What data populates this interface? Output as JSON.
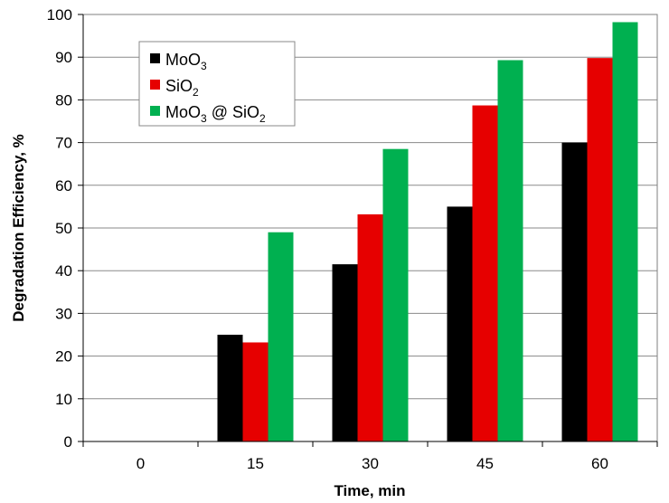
{
  "chart_data": {
    "type": "bar",
    "title": "",
    "xlabel": "Time, min",
    "ylabel": "Degradation Efficiency, %",
    "categories": [
      "0",
      "15",
      "30",
      "45",
      "60"
    ],
    "ylim": [
      0,
      100
    ],
    "ytick_step": 10,
    "grid": true,
    "legend_position": "top-left",
    "series": [
      {
        "name": "MoO3",
        "label_main": "MoO",
        "label_sub": "3",
        "label_tail": "",
        "label_tail_sub": "",
        "color": "#000000",
        "values": [
          0,
          25,
          41.5,
          55,
          70
        ]
      },
      {
        "name": "SiO2",
        "label_main": "SiO",
        "label_sub": "2",
        "label_tail": "",
        "label_tail_sub": "",
        "color": "#e60000",
        "values": [
          0,
          23.2,
          53.2,
          78.7,
          89.8
        ]
      },
      {
        "name": "MoO3 @ SiO2",
        "label_main": "MoO",
        "label_sub": "3",
        "label_tail": " @ SiO",
        "label_tail_sub": "2",
        "color": "#00b050",
        "values": [
          0,
          49,
          68.5,
          89.3,
          98.2
        ]
      }
    ]
  }
}
